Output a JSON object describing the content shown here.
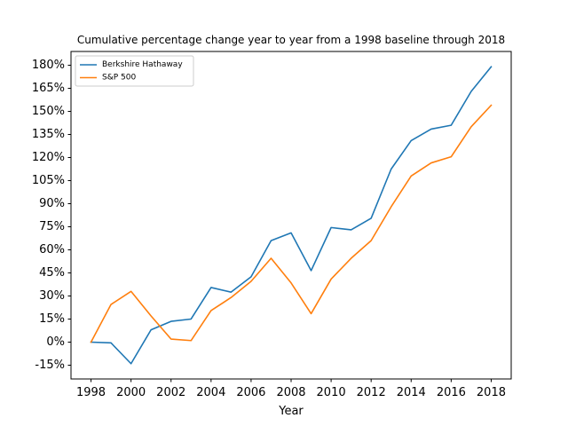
{
  "chart_data": {
    "type": "line",
    "title": "Cumulative percentage change year to year from a 1998 baseline through 2018",
    "xlabel": "Year",
    "ylabel": "",
    "x": [
      1998,
      1999,
      2000,
      2001,
      2002,
      2003,
      2004,
      2005,
      2006,
      2007,
      2008,
      2009,
      2010,
      2011,
      2012,
      2013,
      2014,
      2015,
      2016,
      2017,
      2018
    ],
    "series": [
      {
        "name": "Berkshire Hathaway",
        "color": "#1f77b4",
        "values": [
          0,
          -0.5,
          -14,
          8,
          13.5,
          15,
          35.5,
          32.5,
          42.5,
          66,
          71,
          46.5,
          74.5,
          73,
          80.5,
          112.5,
          131,
          138.5,
          141,
          163,
          179
        ]
      },
      {
        "name": "S&P 500",
        "color": "#ff7f0e",
        "values": [
          0,
          24.5,
          33,
          17,
          2,
          1,
          20.5,
          29,
          39.5,
          54.5,
          38.5,
          18.5,
          41,
          54.5,
          66,
          88,
          108,
          116.5,
          120.5,
          140,
          154
        ]
      }
    ],
    "xticks": [
      1998,
      2000,
      2002,
      2004,
      2006,
      2008,
      2010,
      2012,
      2014,
      2016,
      2018
    ],
    "xtick_labels": [
      "1998",
      "2000",
      "2002",
      "2004",
      "2006",
      "2008",
      "2010",
      "2012",
      "2014",
      "2016",
      "2018"
    ],
    "yticks": [
      -15,
      0,
      15,
      30,
      45,
      60,
      75,
      90,
      105,
      120,
      135,
      150,
      165,
      180
    ],
    "ytick_labels": [
      "-15%",
      "0%",
      "15%",
      "30%",
      "45%",
      "60%",
      "75%",
      "90%",
      "105%",
      "120%",
      "135%",
      "150%",
      "165%",
      "180%"
    ],
    "xlim": [
      1997,
      2019
    ],
    "ylim": [
      -23.95,
      188.95
    ],
    "grid": false,
    "legend_position": "top-left"
  }
}
